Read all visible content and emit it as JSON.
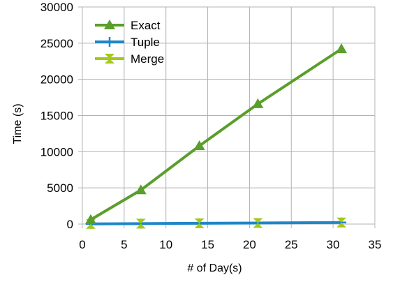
{
  "chart_data": {
    "type": "line",
    "title": "",
    "xlabel": "# of Day(s)",
    "ylabel": "Time (s)",
    "xlim": [
      0,
      35
    ],
    "ylim": [
      0,
      30000
    ],
    "xticks": [
      0,
      5,
      10,
      15,
      20,
      25,
      30,
      35
    ],
    "yticks": [
      0,
      5000,
      10000,
      15000,
      20000,
      25000,
      30000
    ],
    "xtick_labels": [
      "0",
      "5",
      "10",
      "15",
      "20",
      "25",
      "30",
      "35"
    ],
    "ytick_labels": [
      "0",
      "5000",
      "10000",
      "15000",
      "20000",
      "25000",
      "30000"
    ],
    "grid": true,
    "legend_position": "top-left",
    "x": [
      1,
      7,
      14,
      21,
      31
    ],
    "series": [
      {
        "name": "Exact",
        "values": [
          600,
          4700,
          10800,
          16600,
          24200
        ],
        "color": "#5a9e2b",
        "marker": "triangle"
      },
      {
        "name": "Tuple",
        "values": [
          20,
          60,
          110,
          150,
          220
        ],
        "color": "#1f86c8",
        "marker": "plus"
      },
      {
        "name": "Merge",
        "values": [
          20,
          60,
          110,
          150,
          220
        ],
        "color": "#a4c81c",
        "marker": "hourglass"
      }
    ]
  }
}
